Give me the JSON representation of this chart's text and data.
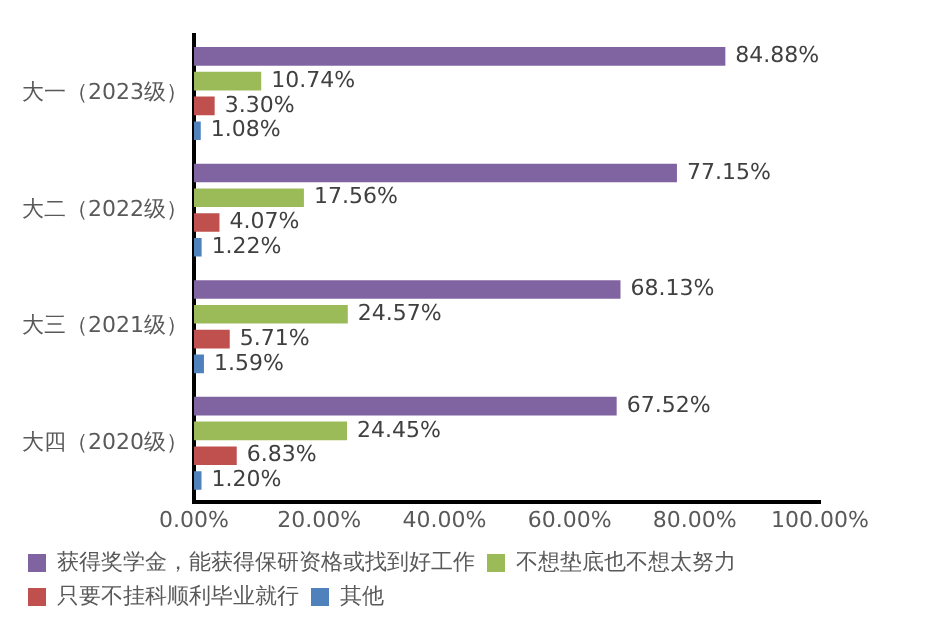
{
  "chart_data": {
    "type": "bar",
    "orientation": "horizontal",
    "categories": [
      "大一（2023级）",
      "大二（2022级）",
      "大三（2021级）",
      "大四（2020级）"
    ],
    "series": [
      {
        "name": "获得奖学金，能获得保研资格或找到好工作",
        "color": "#8064a2",
        "values": [
          84.88,
          77.15,
          68.13,
          67.52
        ],
        "value_labels": [
          "84.88%",
          "77.15%",
          "68.13%",
          "67.52%"
        ]
      },
      {
        "name": "不想垫底也不想太努力",
        "color": "#9bbb59",
        "values": [
          10.74,
          17.56,
          24.57,
          24.45
        ],
        "value_labels": [
          "10.74%",
          "17.56%",
          "24.57%",
          "24.45%"
        ]
      },
      {
        "name": "只要不挂科顺利毕业就行",
        "color": "#c0504d",
        "values": [
          3.3,
          4.07,
          5.71,
          6.83
        ],
        "value_labels": [
          "3.30%",
          "4.07%",
          "5.71%",
          "6.83%"
        ]
      },
      {
        "name": "其他",
        "color": "#4f81bd",
        "values": [
          1.08,
          1.22,
          1.59,
          1.2
        ],
        "value_labels": [
          "1.08%",
          "1.22%",
          "1.59%",
          "1.20%"
        ]
      }
    ],
    "xlim": [
      0,
      100
    ],
    "xticks": [
      {
        "value": 0,
        "label": "0.00%"
      },
      {
        "value": 20,
        "label": "20.00%"
      },
      {
        "value": 40,
        "label": "40.00%"
      },
      {
        "value": 60,
        "label": "60.00%"
      },
      {
        "value": 80,
        "label": "80.00%"
      },
      {
        "value": 100,
        "label": "100.00%"
      }
    ],
    "grid": false,
    "legend": "bottom"
  }
}
